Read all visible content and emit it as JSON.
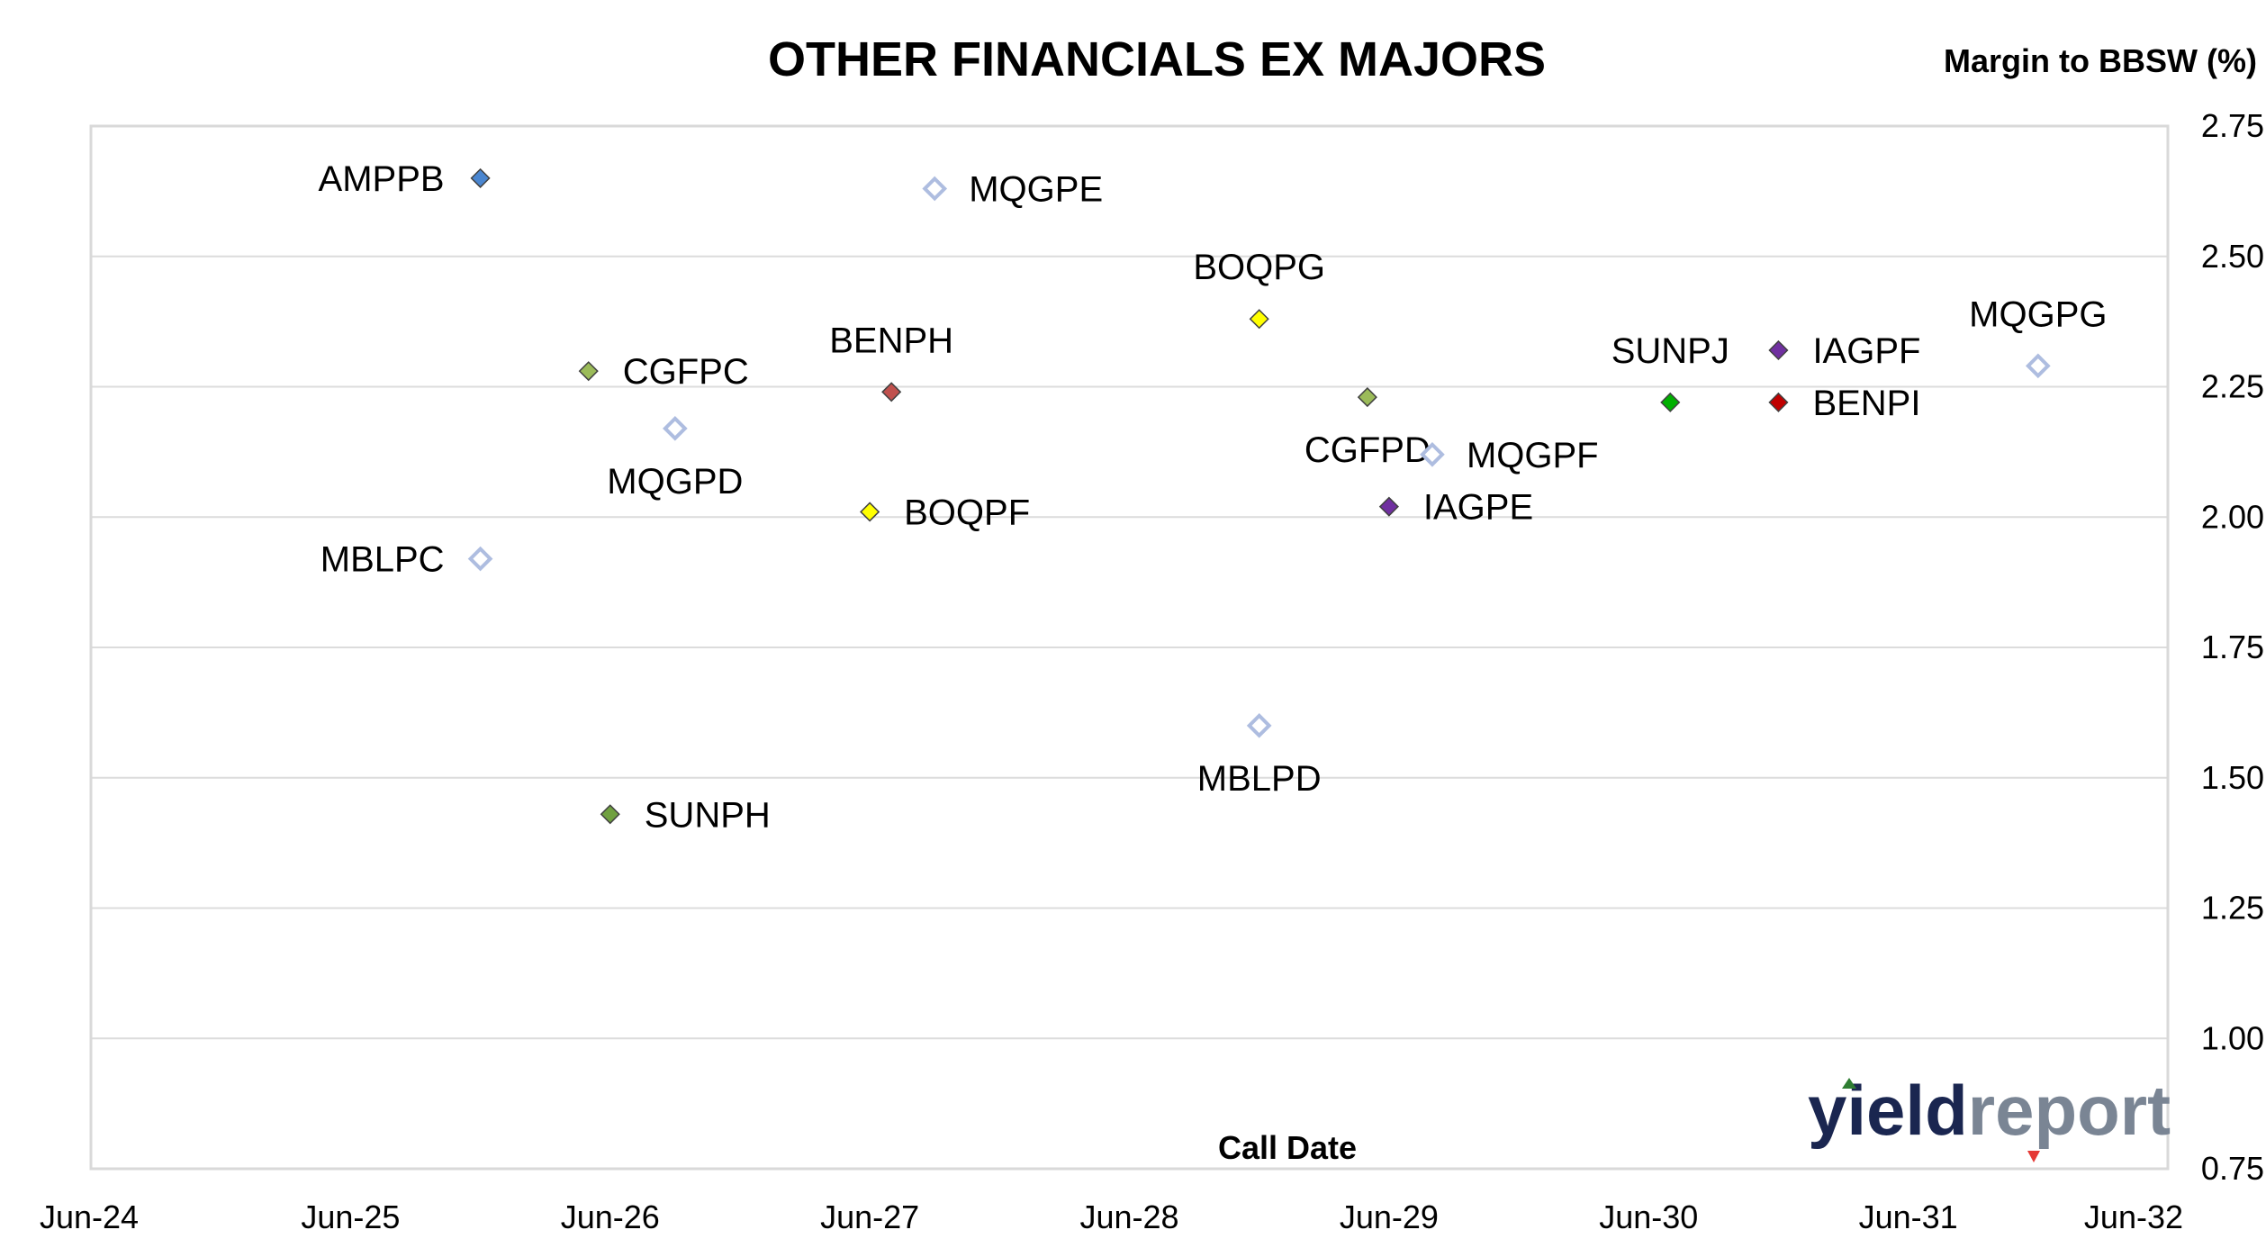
{
  "chart_data": {
    "type": "scatter",
    "title": "OTHER FINANCIALS EX MAJORS",
    "xlabel": "Call Date",
    "ylabel": "Margin to BBSW (%)",
    "x_ticks": [
      "Jun-24",
      "Jun-25",
      "Jun-26",
      "Jun-27",
      "Jun-28",
      "Jun-29",
      "Jun-30",
      "Jun-31",
      "Jun-32"
    ],
    "y_ticks": [
      "0.75",
      "1.00",
      "1.25",
      "1.50",
      "1.75",
      "2.00",
      "2.25",
      "2.50",
      "2.75"
    ],
    "xlim": [
      "Jun-24",
      "Jun-32"
    ],
    "ylim": [
      0.75,
      2.75
    ],
    "grid": "horizontal",
    "points": [
      {
        "name": "AMPPB",
        "x": "Dec-25",
        "y": 2.65,
        "color": "#4a86d0",
        "hollow": false,
        "label_pos": "left"
      },
      {
        "name": "MQGPE",
        "x": "Sep-27",
        "y": 2.63,
        "color": "#aebde0",
        "hollow": true,
        "label_pos": "right"
      },
      {
        "name": "BOQPG",
        "x": "Dec-28",
        "y": 2.38,
        "color": "#ffff00",
        "hollow": false,
        "label_pos": "above"
      },
      {
        "name": "MQGPG",
        "x": "Dec-31",
        "y": 2.29,
        "color": "#aebde0",
        "hollow": true,
        "label_pos": "above"
      },
      {
        "name": "CGFPC",
        "x": "May-26",
        "y": 2.28,
        "color": "#9bbb59",
        "hollow": false,
        "label_pos": "right"
      },
      {
        "name": "BENPH",
        "x": "Jul-27",
        "y": 2.24,
        "color": "#c0504d",
        "hollow": false,
        "label_pos": "above"
      },
      {
        "name": "IAGPF",
        "x": "Dec-30",
        "y": 2.32,
        "color": "#7030a0",
        "hollow": false,
        "label_pos": "right"
      },
      {
        "name": "SUNPJ",
        "x": "Jul-30",
        "y": 2.22,
        "color": "#00b000",
        "hollow": false,
        "label_pos": "above"
      },
      {
        "name": "BENPI",
        "x": "Dec-30",
        "y": 2.22,
        "color": "#c00000",
        "hollow": false,
        "label_pos": "right"
      },
      {
        "name": "CGFPD",
        "x": "May-29",
        "y": 2.23,
        "color": "#9bbb59",
        "hollow": false,
        "label_pos": "below"
      },
      {
        "name": "MQGPD",
        "x": "Sep-26",
        "y": 2.17,
        "color": "#aebde0",
        "hollow": true,
        "label_pos": "below"
      },
      {
        "name": "MQGPF",
        "x": "Aug-29",
        "y": 2.12,
        "color": "#aebde0",
        "hollow": true,
        "label_pos": "right"
      },
      {
        "name": "BOQPF",
        "x": "Jun-27",
        "y": 2.01,
        "color": "#ffff00",
        "hollow": false,
        "label_pos": "right"
      },
      {
        "name": "IAGPE",
        "x": "Jun-29",
        "y": 2.02,
        "color": "#7030a0",
        "hollow": false,
        "label_pos": "right"
      },
      {
        "name": "MBLPC",
        "x": "Dec-25",
        "y": 1.92,
        "color": "#aebde0",
        "hollow": true,
        "label_pos": "left"
      },
      {
        "name": "MBLPD",
        "x": "Dec-28",
        "y": 1.6,
        "color": "#aebde0",
        "hollow": true,
        "label_pos": "below"
      },
      {
        "name": "SUNPH",
        "x": "Jun-26",
        "y": 1.43,
        "color": "#70a040",
        "hollow": false,
        "label_pos": "right"
      }
    ]
  },
  "logo": {
    "text_part1": "yield",
    "text_part2": "report",
    "up_arrow_color": "#2e7d32",
    "down_arrow_color": "#e53935"
  }
}
